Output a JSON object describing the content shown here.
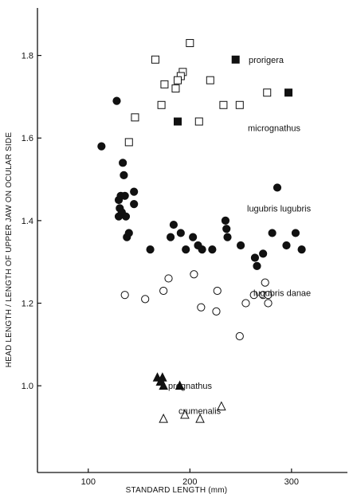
{
  "chart_data": {
    "type": "scatter",
    "xlabel": "STANDARD LENGTH (mm)",
    "ylabel": "HEAD LENGTH / LENGTH OF UPPER JAW ON OCULAR SIDE",
    "xlim": [
      50,
      355
    ],
    "ylim": [
      0.79,
      1.915
    ],
    "xticks": [
      100,
      200,
      300
    ],
    "yticks": [
      1.0,
      1.2,
      1.4,
      1.6,
      1.8
    ],
    "x_tick_labels": [
      "100",
      "200",
      "300"
    ],
    "y_tick_labels": [
      "1.0",
      "1.2",
      "1.4",
      "1.6",
      "1.8"
    ],
    "grid": false,
    "legend": "labels placed beside each cluster",
    "series": [
      {
        "name": "prorigera",
        "marker": "square-filled",
        "points": [
          [
            245,
            1.79
          ],
          [
            297,
            1.71
          ],
          [
            188,
            1.64
          ]
        ]
      },
      {
        "name": "micrognathus",
        "marker": "square-open",
        "points": [
          [
            200,
            1.83
          ],
          [
            166,
            1.79
          ],
          [
            193,
            1.76
          ],
          [
            191,
            1.75
          ],
          [
            175,
            1.73
          ],
          [
            188,
            1.74
          ],
          [
            186,
            1.72
          ],
          [
            220,
            1.74
          ],
          [
            172,
            1.68
          ],
          [
            233,
            1.68
          ],
          [
            249,
            1.68
          ],
          [
            276,
            1.71
          ],
          [
            146,
            1.65
          ],
          [
            209,
            1.64
          ],
          [
            140,
            1.59
          ]
        ]
      },
      {
        "name": "lugubris lugubris",
        "marker": "circle-filled",
        "points": [
          [
            128,
            1.69
          ],
          [
            113,
            1.58
          ],
          [
            134,
            1.54
          ],
          [
            135,
            1.51
          ],
          [
            132,
            1.46
          ],
          [
            130,
            1.45
          ],
          [
            136,
            1.46
          ],
          [
            145,
            1.47
          ],
          [
            131,
            1.43
          ],
          [
            133,
            1.42
          ],
          [
            137,
            1.41
          ],
          [
            145,
            1.44
          ],
          [
            130,
            1.41
          ],
          [
            138,
            1.36
          ],
          [
            140,
            1.37
          ],
          [
            286,
            1.48
          ],
          [
            161,
            1.33
          ],
          [
            181,
            1.36
          ],
          [
            184,
            1.39
          ],
          [
            191,
            1.37
          ],
          [
            196,
            1.33
          ],
          [
            203,
            1.36
          ],
          [
            208,
            1.34
          ],
          [
            212,
            1.33
          ],
          [
            222,
            1.33
          ],
          [
            235,
            1.4
          ],
          [
            236,
            1.38
          ],
          [
            237,
            1.36
          ],
          [
            250,
            1.34
          ],
          [
            264,
            1.31
          ],
          [
            266,
            1.29
          ],
          [
            272,
            1.32
          ],
          [
            281,
            1.37
          ],
          [
            295,
            1.34
          ],
          [
            304,
            1.37
          ],
          [
            310,
            1.33
          ]
        ]
      },
      {
        "name": "lugubris danae",
        "marker": "circle-open",
        "points": [
          [
            136,
            1.22
          ],
          [
            156,
            1.21
          ],
          [
            174,
            1.23
          ],
          [
            179,
            1.26
          ],
          [
            204,
            1.27
          ],
          [
            211,
            1.19
          ],
          [
            226,
            1.18
          ],
          [
            227,
            1.23
          ],
          [
            249,
            1.12
          ],
          [
            255,
            1.2
          ],
          [
            263,
            1.22
          ],
          [
            272,
            1.22
          ],
          [
            274,
            1.25
          ],
          [
            277,
            1.2
          ],
          [
            277,
            1.22
          ]
        ]
      },
      {
        "name": "prognathus",
        "marker": "triangle-filled",
        "points": [
          [
            168,
            1.02
          ],
          [
            171,
            1.01
          ],
          [
            173,
            1.02
          ],
          [
            174,
            1.0
          ],
          [
            190,
            1.0
          ]
        ]
      },
      {
        "name": "crumenalis",
        "marker": "triangle-open",
        "points": [
          [
            174,
            0.92
          ],
          [
            195,
            0.93
          ],
          [
            210,
            0.92
          ],
          [
            231,
            0.95
          ]
        ]
      }
    ]
  }
}
